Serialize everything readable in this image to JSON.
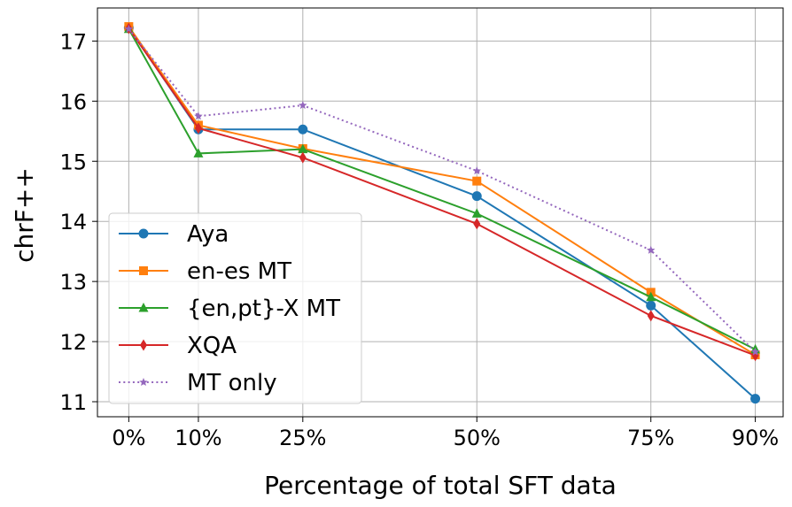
{
  "chart_data": {
    "type": "line",
    "xlabel": "Percentage of total SFT data",
    "ylabel": "chrF++",
    "x": [
      0,
      10,
      25,
      50,
      75,
      90
    ],
    "x_tick_labels": [
      "0%",
      "10%",
      "25%",
      "50%",
      "75%",
      "90%"
    ],
    "xlim": [
      -4.5,
      94
    ],
    "ylim": [
      10.75,
      17.55
    ],
    "y_ticks": [
      11,
      12,
      13,
      14,
      15,
      16,
      17
    ],
    "y_tick_labels": [
      "11",
      "12",
      "13",
      "14",
      "15",
      "16",
      "17"
    ],
    "grid": true,
    "legend_position": "lower-left",
    "series": [
      {
        "name": "Aya",
        "color": "#1f77b4",
        "marker": "circle",
        "linestyle": "solid",
        "values": [
          17.22,
          15.53,
          15.53,
          14.42,
          12.6,
          11.05
        ]
      },
      {
        "name": "en-es MT",
        "color": "#ff7f0e",
        "marker": "square",
        "linestyle": "solid",
        "values": [
          17.24,
          15.6,
          15.21,
          14.67,
          12.82,
          11.78
        ]
      },
      {
        "name": "{en,pt}-X MT",
        "color": "#2ca02c",
        "marker": "triangle",
        "linestyle": "solid",
        "values": [
          17.2,
          15.13,
          15.2,
          14.13,
          12.74,
          11.87
        ]
      },
      {
        "name": "XQA",
        "color": "#d62728",
        "marker": "diamond",
        "linestyle": "solid",
        "values": [
          17.21,
          15.55,
          15.06,
          13.96,
          12.43,
          11.77
        ]
      },
      {
        "name": "MT only",
        "color": "#9467bd",
        "marker": "star",
        "linestyle": "dotted",
        "values": [
          17.2,
          15.75,
          15.93,
          14.84,
          13.52,
          11.83
        ]
      }
    ]
  }
}
